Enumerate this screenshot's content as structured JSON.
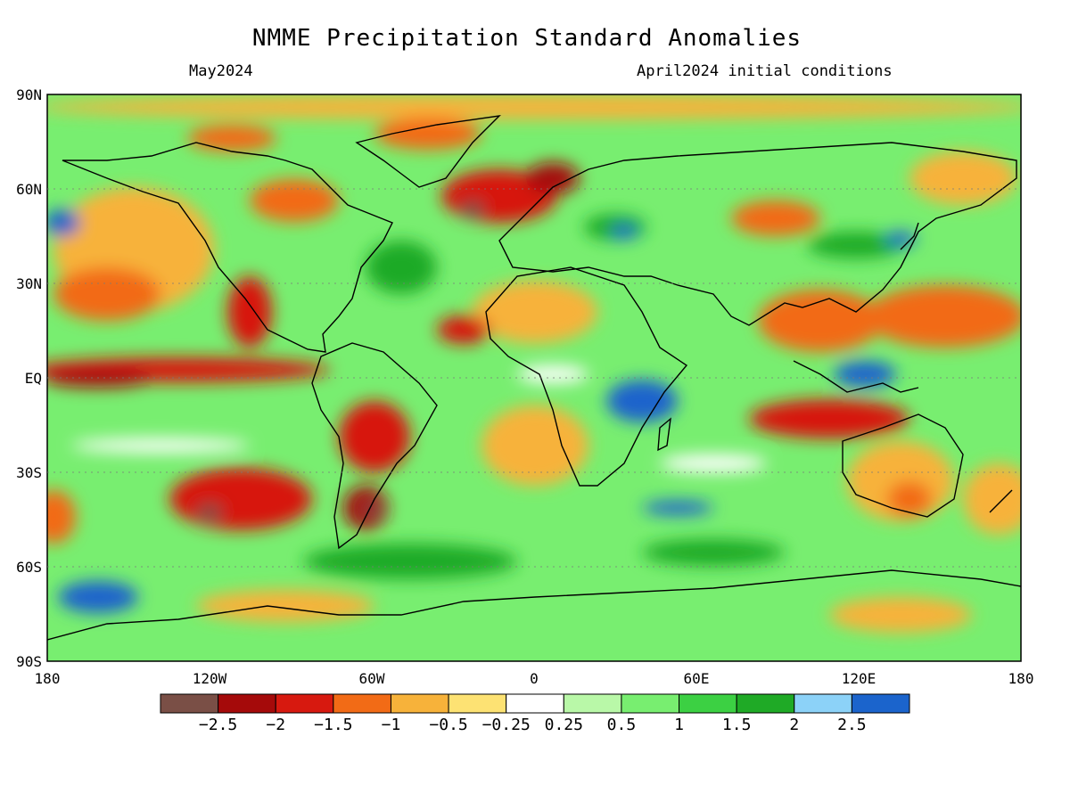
{
  "title": "NMME Precipitation Standard Anomalies",
  "valid_month": "May2024",
  "init_conditions": "April2024 initial conditions",
  "latitude_labels": [
    "90N",
    "60N",
    "30N",
    "EQ",
    "30S",
    "60S",
    "90S"
  ],
  "longitude_labels": [
    "180",
    "120W",
    "60W",
    "0",
    "60E",
    "120E",
    "180"
  ],
  "colorbar": {
    "colors": [
      "#7a4f46",
      "#a50a0a",
      "#d7190f",
      "#f26b16",
      "#f7b23a",
      "#fde273",
      "#ffffff",
      "#b9f8a8",
      "#78ee70",
      "#3cd043",
      "#1faa26",
      "#8cd2f8",
      "#1b64cc"
    ],
    "labels": [
      "-2.5",
      "-2",
      "-1.5",
      "-1",
      "-0.5",
      "-0.25",
      "0.25",
      "0.5",
      "1",
      "1.5",
      "2",
      "2.5"
    ]
  }
}
